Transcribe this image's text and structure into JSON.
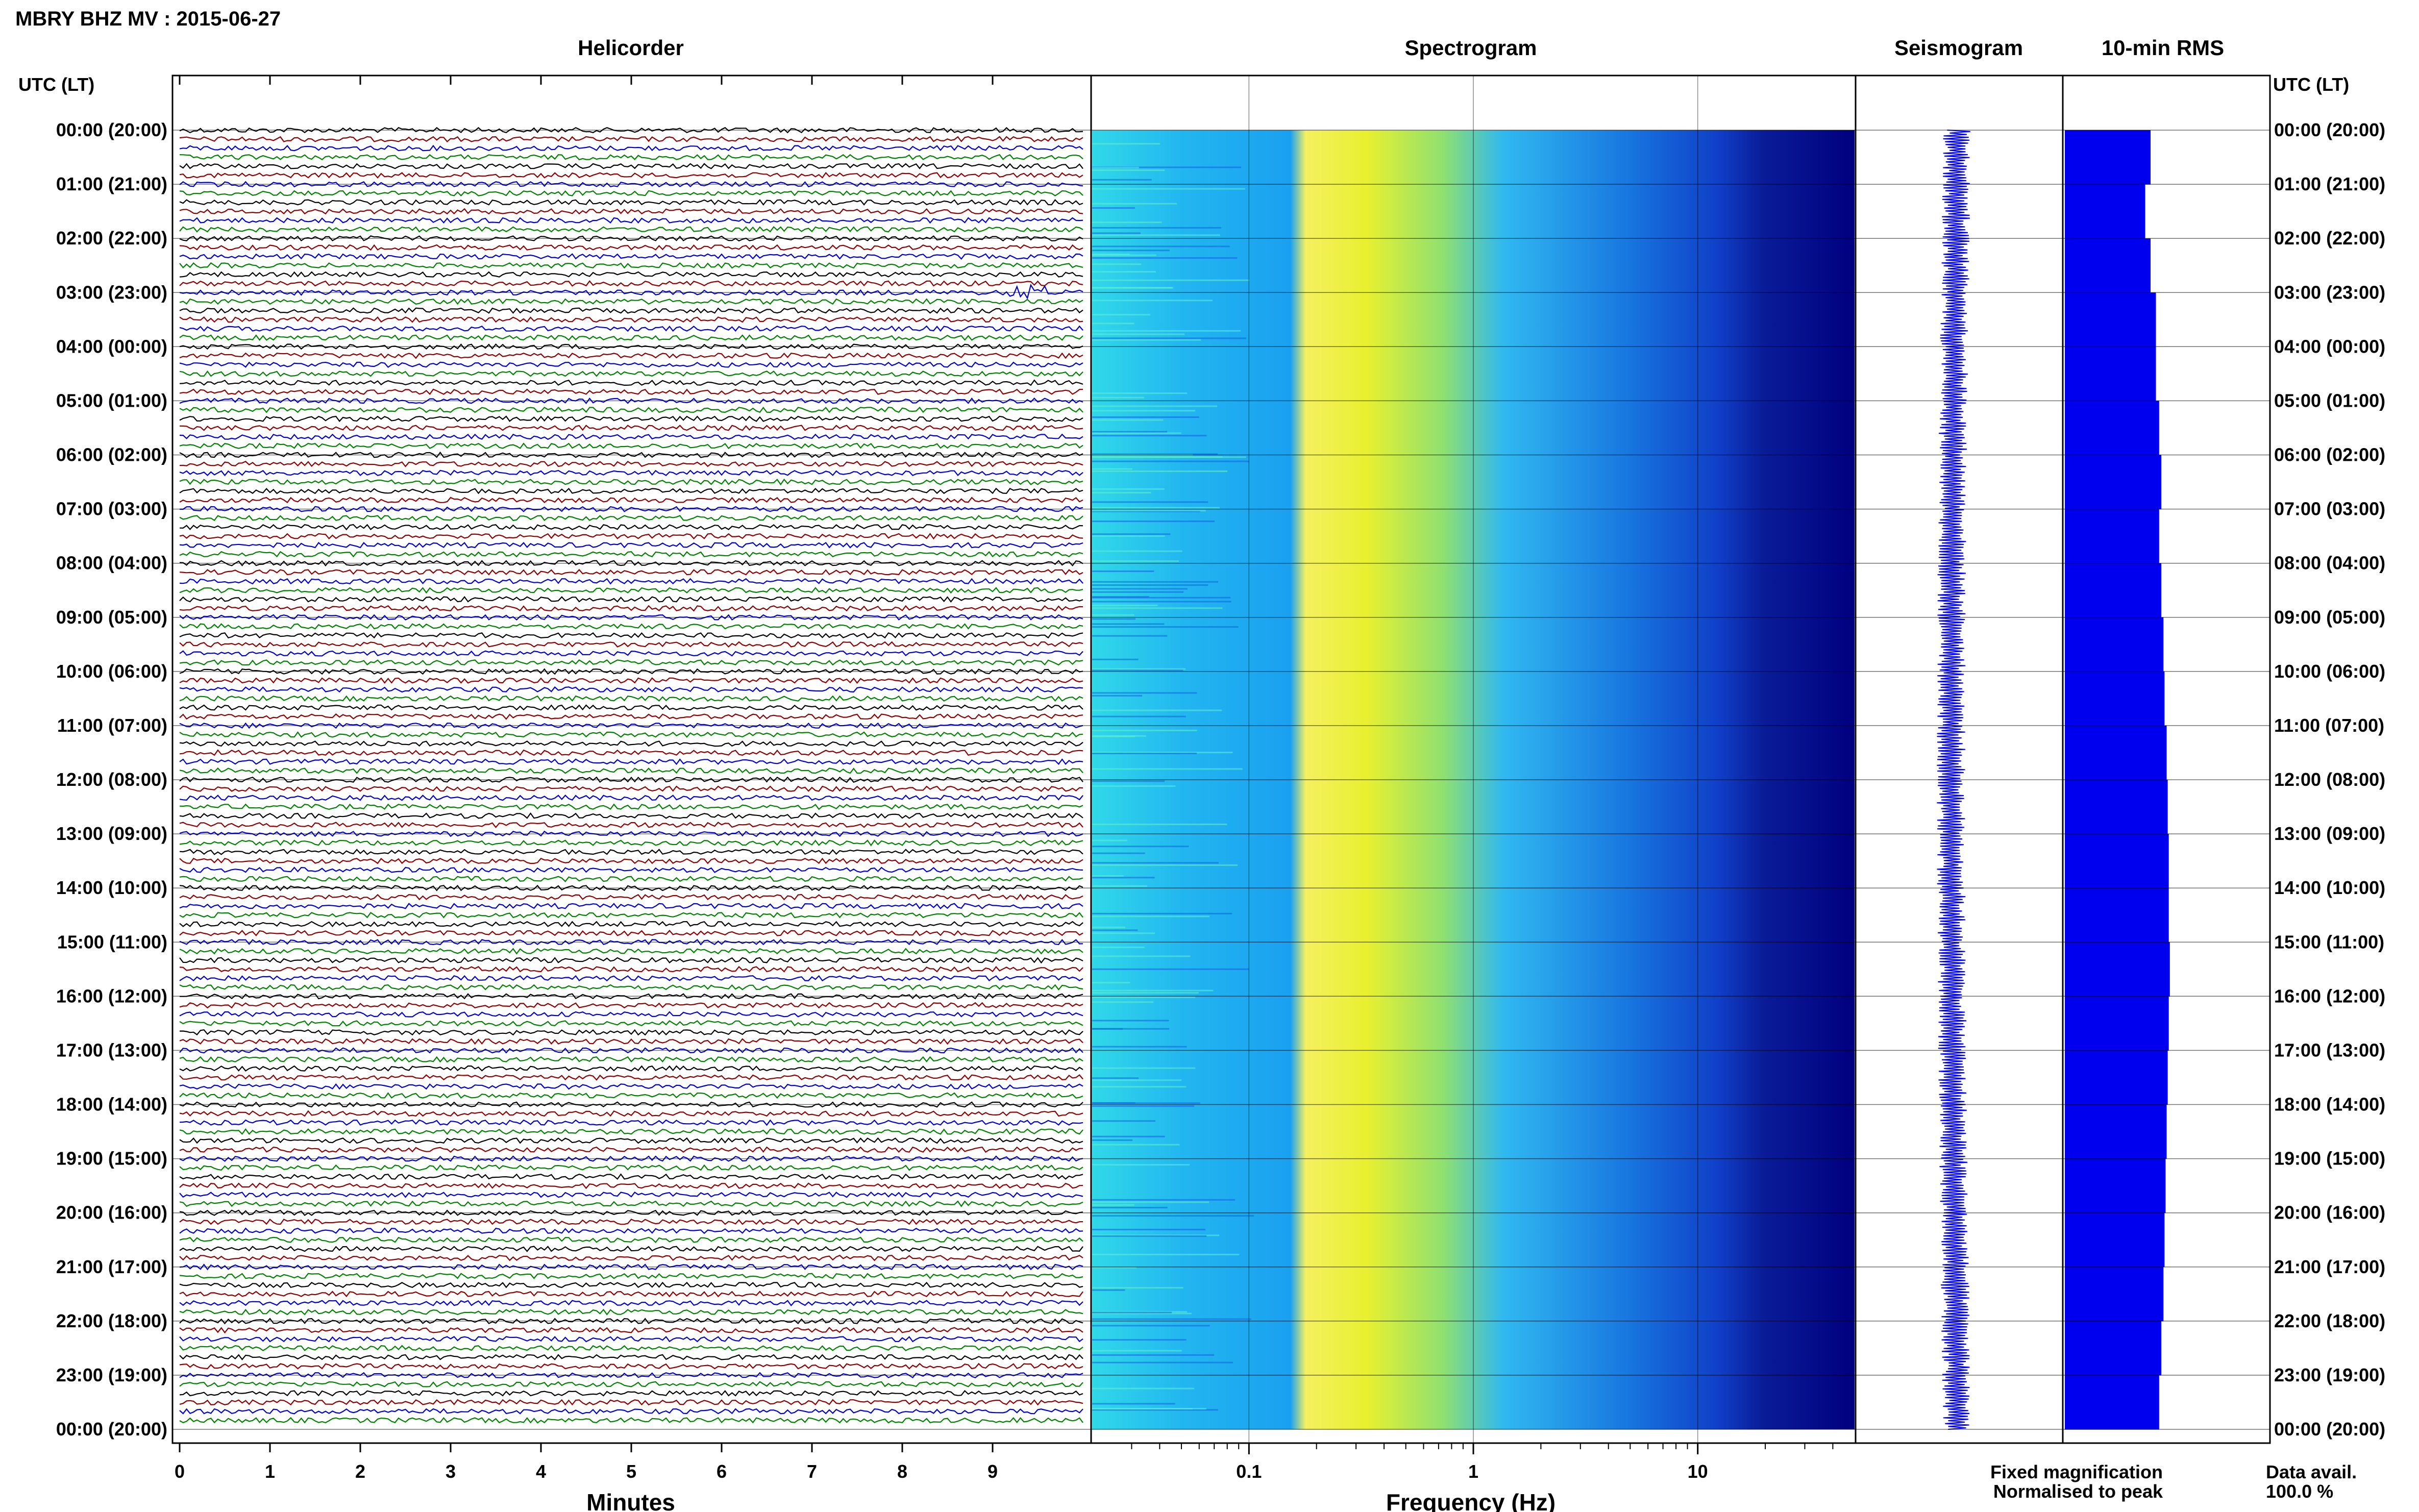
{
  "header": {
    "title": "MBRY BHZ MV : 2015-06-27"
  },
  "panels": {
    "helicorder": "Helicorder",
    "spectrogram": "Spectrogram",
    "seismogram": "Seismogram",
    "rms": "10-min RMS"
  },
  "time_axis_label": "UTC (LT)",
  "hour_labels": [
    "00:00 (20:00)",
    "01:00 (21:00)",
    "02:00 (22:00)",
    "03:00 (23:00)",
    "04:00 (00:00)",
    "05:00 (01:00)",
    "06:00 (02:00)",
    "07:00 (03:00)",
    "08:00 (04:00)",
    "09:00 (05:00)",
    "10:00 (06:00)",
    "11:00 (07:00)",
    "12:00 (08:00)",
    "13:00 (09:00)",
    "14:00 (10:00)",
    "15:00 (11:00)",
    "16:00 (12:00)",
    "17:00 (13:00)",
    "18:00 (14:00)",
    "19:00 (15:00)",
    "20:00 (16:00)",
    "21:00 (17:00)",
    "22:00 (18:00)",
    "23:00 (19:00)",
    "00:00 (20:00)"
  ],
  "footer": {
    "fixed": "Fixed magnification",
    "normalised": "Normalised to peak",
    "avail_label": "Data avail.",
    "avail_value": "100.0 %"
  },
  "colors": {
    "trace_cycle": [
      "#000000",
      "#8b0000",
      "#0000cc",
      "#008000"
    ],
    "fixed": "#0000ff",
    "normalised": "#ff0000",
    "bars": "#0000ee",
    "spec_low": "#000080",
    "spec_mid": "#00c8ff",
    "spec_high": "#ffff00"
  },
  "chart_data": [
    {
      "type": "line",
      "name": "helicorder",
      "title": "Helicorder",
      "xlabel": "Minutes",
      "x_ticks": [
        "0",
        "1",
        "2",
        "3",
        "4",
        "5",
        "6",
        "7",
        "8",
        "9"
      ],
      "xlim": [
        0,
        10
      ],
      "rows_per_hour": 6,
      "row_minutes": 10,
      "hours": 24,
      "notable_event_hour": 3
    },
    {
      "type": "heatmap",
      "name": "spectrogram",
      "title": "Spectrogram",
      "xlabel": "Frequency (Hz)",
      "x_scale": "log",
      "x_ticks": [
        "0.1",
        "1",
        "10"
      ],
      "xlim": [
        0.02,
        50
      ],
      "peak_band_hz": [
        0.2,
        0.5
      ]
    },
    {
      "type": "line",
      "name": "seismogram",
      "title": "Seismogram",
      "hours": 24
    },
    {
      "type": "bar",
      "name": "rms",
      "title": "10-min RMS",
      "hours": 24,
      "hourly_relative_values": [
        0.8,
        0.75,
        0.8,
        0.85,
        0.85,
        0.88,
        0.9,
        0.88,
        0.9,
        0.92,
        0.93,
        0.95,
        0.96,
        0.97,
        0.97,
        0.98,
        0.97,
        0.96,
        0.95,
        0.94,
        0.93,
        0.92,
        0.9,
        0.88
      ]
    }
  ]
}
